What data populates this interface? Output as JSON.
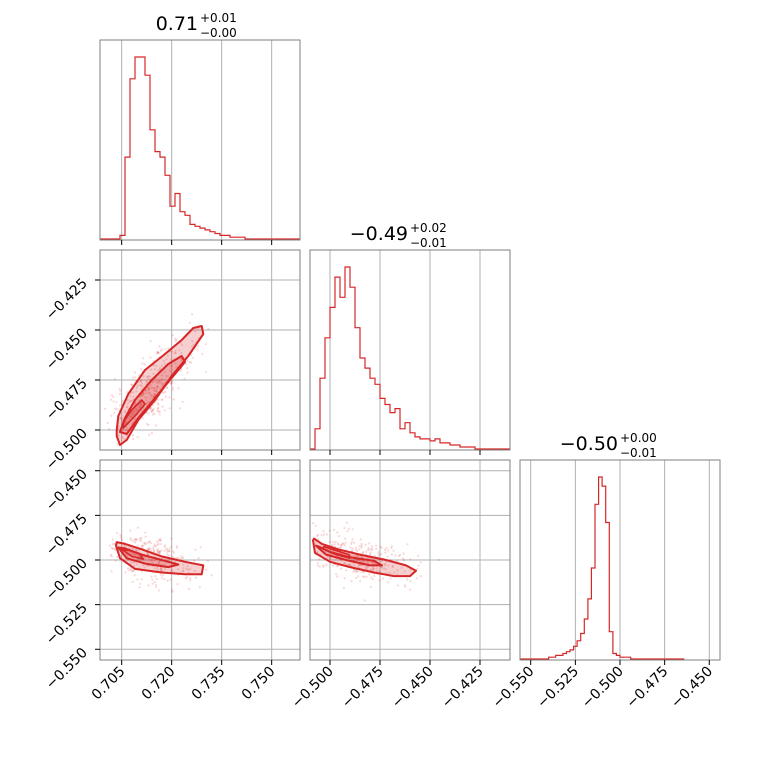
{
  "chart_data": {
    "type": "corner",
    "color": "#d62728",
    "parameters": [
      {
        "title": {
          "median": "0.71",
          "plus": "+0.01",
          "minus": "−0.00"
        },
        "range": [
          0.6985,
          0.7585
        ],
        "ticks": [
          {
            "value": 0.705,
            "label": "0.705"
          },
          {
            "value": 0.72,
            "label": "0.720"
          },
          {
            "value": 0.735,
            "label": "0.735"
          },
          {
            "value": 0.75,
            "label": "0.750"
          }
        ],
        "histogram": {
          "bin_edges_start": 0.6985,
          "bin_width": 0.0015,
          "counts": [
            0,
            0,
            0,
            0,
            2,
            45,
            88,
            100,
            100,
            90,
            60,
            48,
            45,
            35,
            18,
            25,
            15,
            13,
            8,
            7,
            6,
            5,
            4,
            3,
            2,
            2,
            1,
            1,
            1,
            0,
            0,
            0,
            0,
            0,
            0,
            0,
            0,
            0,
            0,
            0
          ]
        }
      },
      {
        "title": {
          "median": "−0.49",
          "plus": "+0.02",
          "minus": "−0.01"
        },
        "range": [
          -0.51,
          -0.41
        ],
        "ticks": [
          {
            "value": -0.5,
            "label": "−0.500"
          },
          {
            "value": -0.475,
            "label": "−0.475"
          },
          {
            "value": -0.45,
            "label": "−0.450"
          },
          {
            "value": -0.425,
            "label": "−0.425"
          }
        ],
        "histogram": {
          "bin_edges_start": -0.51,
          "bin_width": 0.0025,
          "counts": [
            0,
            10,
            35,
            55,
            70,
            85,
            75,
            90,
            80,
            60,
            45,
            40,
            35,
            32,
            25,
            22,
            18,
            20,
            10,
            13,
            8,
            6,
            5,
            5,
            4,
            5,
            3,
            3,
            2,
            2,
            1,
            1,
            1,
            0,
            0,
            0,
            0,
            0,
            0,
            0
          ]
        }
      },
      {
        "title": {
          "median": "−0.50",
          "plus": "+0.00",
          "minus": "−0.01"
        },
        "range": [
          -0.556,
          -0.444
        ],
        "ticks": [
          {
            "value": -0.55,
            "label": "−0.550"
          },
          {
            "value": -0.525,
            "label": "−0.525"
          },
          {
            "value": -0.5,
            "label": "−0.500"
          },
          {
            "value": -0.475,
            "label": "−0.475"
          },
          {
            "value": -0.45,
            "label": "−0.450"
          }
        ],
        "histogram": {
          "bin_edges_start": -0.556,
          "bin_width": 0.002,
          "counts": [
            0,
            0,
            0,
            0,
            0,
            0,
            0,
            0,
            1,
            1,
            2,
            2,
            3,
            4,
            5,
            7,
            10,
            14,
            22,
            33,
            50,
            85,
            100,
            95,
            75,
            15,
            3,
            2,
            1,
            1,
            1,
            0,
            0,
            0,
            0,
            0,
            0,
            0,
            0,
            0,
            0,
            0,
            0,
            0,
            0,
            0
          ]
        }
      }
    ],
    "pairs": [
      {
        "x": 0,
        "y": 1,
        "outer_contour": [
          [
            0.7035,
            -0.503
          ],
          [
            0.7045,
            -0.5075
          ],
          [
            0.7065,
            -0.505
          ],
          [
            0.71,
            -0.495
          ],
          [
            0.715,
            -0.485
          ],
          [
            0.72,
            -0.473
          ],
          [
            0.725,
            -0.463
          ],
          [
            0.7295,
            -0.452
          ],
          [
            0.729,
            -0.448
          ],
          [
            0.7265,
            -0.449
          ],
          [
            0.723,
            -0.455
          ],
          [
            0.718,
            -0.462
          ],
          [
            0.712,
            -0.47
          ],
          [
            0.707,
            -0.482
          ],
          [
            0.704,
            -0.493
          ],
          [
            0.7035,
            -0.5
          ]
        ],
        "inner_contour": [
          [
            0.7045,
            -0.501
          ],
          [
            0.7065,
            -0.502
          ],
          [
            0.71,
            -0.494
          ],
          [
            0.715,
            -0.484
          ],
          [
            0.72,
            -0.474
          ],
          [
            0.724,
            -0.466
          ],
          [
            0.723,
            -0.463
          ],
          [
            0.719,
            -0.467
          ],
          [
            0.714,
            -0.475
          ],
          [
            0.709,
            -0.485
          ],
          [
            0.706,
            -0.494
          ]
        ],
        "core_contour": [
          [
            0.7055,
            -0.499
          ],
          [
            0.709,
            -0.493
          ],
          [
            0.712,
            -0.487
          ],
          [
            0.711,
            -0.485
          ],
          [
            0.708,
            -0.49
          ],
          [
            0.7055,
            -0.496
          ]
        ],
        "scatter_center": [
          0.713,
          -0.483
        ],
        "scatter_count": 420
      },
      {
        "x": 0,
        "y": 2,
        "outer_contour": [
          [
            0.7033,
            -0.492
          ],
          [
            0.7045,
            -0.499
          ],
          [
            0.709,
            -0.505
          ],
          [
            0.717,
            -0.507
          ],
          [
            0.724,
            -0.508
          ],
          [
            0.729,
            -0.508
          ],
          [
            0.7295,
            -0.503
          ],
          [
            0.724,
            -0.501
          ],
          [
            0.717,
            -0.498
          ],
          [
            0.711,
            -0.494
          ],
          [
            0.706,
            -0.491
          ],
          [
            0.7035,
            -0.49
          ]
        ],
        "inner_contour": [
          [
            0.704,
            -0.493
          ],
          [
            0.7065,
            -0.499
          ],
          [
            0.712,
            -0.502
          ],
          [
            0.719,
            -0.504
          ],
          [
            0.722,
            -0.5025
          ],
          [
            0.717,
            -0.5
          ],
          [
            0.711,
            -0.497
          ],
          [
            0.706,
            -0.4935
          ]
        ],
        "core_contour": [
          [
            0.705,
            -0.494
          ],
          [
            0.708,
            -0.498
          ],
          [
            0.7115,
            -0.4995
          ],
          [
            0.7105,
            -0.4965
          ],
          [
            0.707,
            -0.4945
          ]
        ],
        "scatter_center": [
          0.715,
          -0.5
        ],
        "scatter_count": 320
      },
      {
        "x": 1,
        "y": 2,
        "outer_contour": [
          [
            -0.5085,
            -0.489
          ],
          [
            -0.5075,
            -0.496
          ],
          [
            -0.5,
            -0.501
          ],
          [
            -0.49,
            -0.504
          ],
          [
            -0.478,
            -0.507
          ],
          [
            -0.468,
            -0.509
          ],
          [
            -0.46,
            -0.509
          ],
          [
            -0.457,
            -0.506
          ],
          [
            -0.462,
            -0.503
          ],
          [
            -0.472,
            -0.5
          ],
          [
            -0.485,
            -0.497
          ],
          [
            -0.496,
            -0.494
          ],
          [
            -0.504,
            -0.491
          ],
          [
            -0.508,
            -0.488
          ]
        ],
        "inner_contour": [
          [
            -0.507,
            -0.492
          ],
          [
            -0.502,
            -0.497
          ],
          [
            -0.492,
            -0.5
          ],
          [
            -0.48,
            -0.503
          ],
          [
            -0.474,
            -0.503
          ],
          [
            -0.478,
            -0.5005
          ],
          [
            -0.49,
            -0.4985
          ],
          [
            -0.5,
            -0.4955
          ],
          [
            -0.5055,
            -0.4925
          ]
        ],
        "core_contour": [
          [
            -0.504,
            -0.4935
          ],
          [
            -0.498,
            -0.4965
          ],
          [
            -0.49,
            -0.499
          ],
          [
            -0.4905,
            -0.497
          ],
          [
            -0.4975,
            -0.4945
          ],
          [
            -0.503,
            -0.4925
          ]
        ],
        "scatter_center": [
          -0.485,
          -0.5
        ],
        "scatter_count": 360
      }
    ],
    "grid": true
  }
}
